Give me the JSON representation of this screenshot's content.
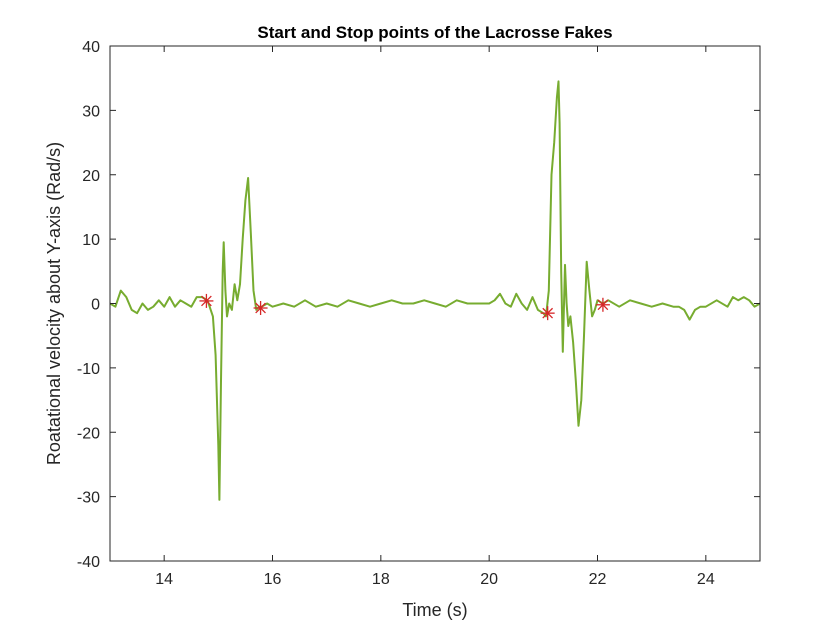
{
  "chart_data": {
    "type": "line",
    "title": "Start and Stop points of the Lacrosse Fakes",
    "xlabel": "Time (s)",
    "ylabel": "Roatational velocity about Y-axis (Rad/s)",
    "xlim": [
      13,
      25
    ],
    "ylim": [
      -40,
      40
    ],
    "xticks": [
      14,
      16,
      18,
      20,
      22,
      24
    ],
    "yticks": [
      -40,
      -30,
      -20,
      -10,
      0,
      10,
      20,
      30,
      40
    ],
    "grid": false,
    "legend": "none",
    "series": [
      {
        "color": "#77ac30",
        "x": [
          13.0,
          13.1,
          13.2,
          13.3,
          13.4,
          13.5,
          13.6,
          13.7,
          13.8,
          13.9,
          14.0,
          14.1,
          14.2,
          14.3,
          14.4,
          14.5,
          14.6,
          14.7,
          14.8,
          14.9,
          14.95,
          15.0,
          15.02,
          15.05,
          15.08,
          15.1,
          15.13,
          15.16,
          15.2,
          15.25,
          15.3,
          15.35,
          15.4,
          15.45,
          15.5,
          15.55,
          15.6,
          15.65,
          15.7,
          15.75,
          15.8,
          15.9,
          16.0,
          16.2,
          16.4,
          16.6,
          16.8,
          17.0,
          17.2,
          17.4,
          17.6,
          17.8,
          18.0,
          18.2,
          18.4,
          18.6,
          18.8,
          19.0,
          19.2,
          19.4,
          19.6,
          19.8,
          20.0,
          20.1,
          20.2,
          20.3,
          20.4,
          20.5,
          20.6,
          20.7,
          20.8,
          20.9,
          21.0,
          21.05,
          21.1,
          21.15,
          21.2,
          21.25,
          21.28,
          21.3,
          21.33,
          21.36,
          21.4,
          21.43,
          21.46,
          21.5,
          21.55,
          21.6,
          21.65,
          21.7,
          21.75,
          21.8,
          21.85,
          21.9,
          21.95,
          22.0,
          22.1,
          22.2,
          22.4,
          22.6,
          22.8,
          23.0,
          23.2,
          23.4,
          23.5,
          23.6,
          23.7,
          23.8,
          23.9,
          24.0,
          24.2,
          24.4,
          24.5,
          24.6,
          24.7,
          24.8,
          24.9,
          25.0
        ],
        "y": [
          0.0,
          -0.5,
          2.0,
          1.0,
          -1.0,
          -1.5,
          0.0,
          -1.0,
          -0.5,
          0.5,
          -0.5,
          1.0,
          -0.5,
          0.5,
          0.0,
          -0.5,
          1.0,
          1.0,
          0.5,
          -2.0,
          -8.0,
          -22.0,
          -30.5,
          -12.0,
          5.0,
          9.5,
          2.0,
          -2.0,
          0.0,
          -1.0,
          3.0,
          0.5,
          3.0,
          10.0,
          16.0,
          19.5,
          11.0,
          2.0,
          -1.0,
          -0.5,
          -0.5,
          0.0,
          -0.5,
          0.0,
          -0.5,
          0.5,
          -0.5,
          0.0,
          -0.5,
          0.5,
          0.0,
          -0.5,
          0.0,
          0.5,
          0.0,
          0.0,
          0.5,
          0.0,
          -0.5,
          0.5,
          0.0,
          0.0,
          0.0,
          0.5,
          1.5,
          0.0,
          -0.5,
          1.5,
          0.0,
          -1.0,
          1.0,
          -1.0,
          -1.5,
          -2.0,
          2.0,
          20.0,
          25.0,
          32.0,
          34.5,
          28.0,
          5.0,
          -7.5,
          6.0,
          0.0,
          -3.5,
          -2.0,
          -6.0,
          -12.0,
          -19.0,
          -15.0,
          -5.0,
          6.5,
          2.0,
          -2.0,
          -1.0,
          0.5,
          0.0,
          0.5,
          -0.5,
          0.5,
          0.0,
          -0.5,
          0.0,
          -0.5,
          -0.5,
          -1.0,
          -2.5,
          -1.0,
          -0.5,
          -0.5,
          0.5,
          -0.5,
          1.0,
          0.5,
          1.0,
          0.5,
          -0.5,
          0.0
        ]
      }
    ],
    "markers": {
      "color": "#d62728",
      "points": [
        {
          "x": 14.78,
          "y": 0.4
        },
        {
          "x": 15.78,
          "y": -0.7
        },
        {
          "x": 21.08,
          "y": -1.5
        },
        {
          "x": 22.1,
          "y": -0.2
        }
      ]
    }
  }
}
